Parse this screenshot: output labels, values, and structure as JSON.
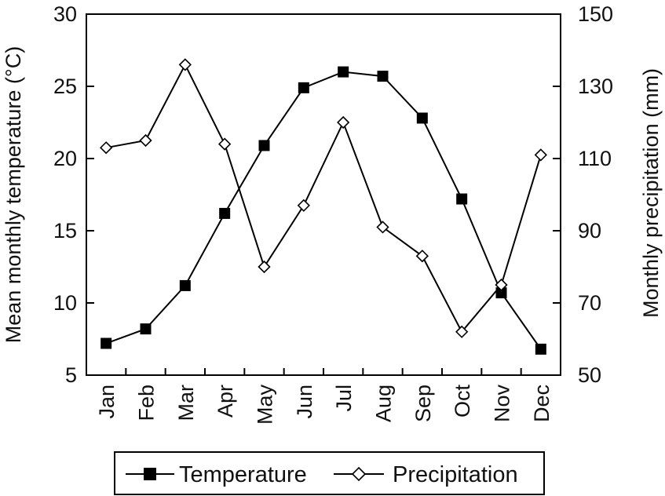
{
  "chart_data": {
    "type": "line",
    "categories": [
      "Jan",
      "Feb",
      "Mar",
      "Apr",
      "May",
      "Jun",
      "Jul",
      "Aug",
      "Sep",
      "Oct",
      "Nov",
      "Dec"
    ],
    "series": [
      {
        "name": "Temperature",
        "axis": "left",
        "marker": "filled-square",
        "values": [
          7.2,
          8.2,
          11.2,
          16.2,
          20.9,
          24.9,
          26.0,
          25.7,
          22.8,
          17.2,
          10.7,
          6.8
        ]
      },
      {
        "name": "Precipitation",
        "axis": "right",
        "marker": "open-diamond",
        "values": [
          113,
          115,
          136,
          114,
          80,
          97,
          120,
          91,
          83,
          62,
          75,
          111
        ]
      }
    ],
    "ylabel": "Mean monthly temperature (°C)",
    "y2label": "Monthly precipitation (mm)",
    "ylim": [
      5,
      30
    ],
    "yticks": [
      5,
      10,
      15,
      20,
      25,
      30
    ],
    "y2lim": [
      50,
      150
    ],
    "y2ticks": [
      50,
      70,
      90,
      110,
      130,
      150
    ],
    "grid": false,
    "legend_placement": "bottom-center",
    "colors": {
      "line": "#000000",
      "marker_fill": "#000000",
      "open_marker_fill": "#ffffff"
    }
  }
}
